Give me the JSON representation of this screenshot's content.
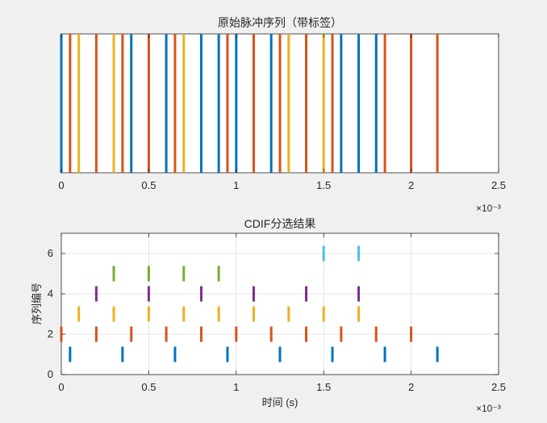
{
  "chart_data": [
    {
      "type": "pulse-train",
      "title": "原始脉冲序列（带标签）",
      "xlabel": "",
      "ylabel": "",
      "xlim": [
        0,
        0.0025
      ],
      "ylim": [
        0,
        1
      ],
      "x_ticks": [
        "0",
        "0.5",
        "1",
        "1.5",
        "2",
        "2.5"
      ],
      "x_exponent": "×10⁻³",
      "grid": false,
      "pulses": [
        {
          "x": 0.0,
          "color": "#0072BD"
        },
        {
          "x": 5e-05,
          "color": "#D95319"
        },
        {
          "x": 0.0001,
          "color": "#EDB120"
        },
        {
          "x": 0.0002,
          "color": "#D95319"
        },
        {
          "x": 0.0003,
          "color": "#EDB120"
        },
        {
          "x": 0.00035,
          "color": "#D95319"
        },
        {
          "x": 0.0004,
          "color": "#0072BD"
        },
        {
          "x": 0.0005,
          "color": "#D95319"
        },
        {
          "x": 0.0006,
          "color": "#0072BD"
        },
        {
          "x": 0.00065,
          "color": "#D95319"
        },
        {
          "x": 0.0007,
          "color": "#EDB120"
        },
        {
          "x": 0.0008,
          "color": "#0072BD"
        },
        {
          "x": 0.0009,
          "color": "#0072BD"
        },
        {
          "x": 0.00095,
          "color": "#D95319"
        },
        {
          "x": 0.001,
          "color": "#0072BD"
        },
        {
          "x": 0.0011,
          "color": "#D95319"
        },
        {
          "x": 0.0012,
          "color": "#0072BD"
        },
        {
          "x": 0.00125,
          "color": "#D95319"
        },
        {
          "x": 0.0013,
          "color": "#EDB120"
        },
        {
          "x": 0.0014,
          "color": "#D95319"
        },
        {
          "x": 0.0015,
          "color": "#EDB120"
        },
        {
          "x": 0.00155,
          "color": "#D95319"
        },
        {
          "x": 0.0016,
          "color": "#0072BD"
        },
        {
          "x": 0.0017,
          "color": "#0072BD"
        },
        {
          "x": 0.0018,
          "color": "#0072BD"
        },
        {
          "x": 0.00185,
          "color": "#D95319"
        },
        {
          "x": 0.002,
          "color": "#D95319"
        },
        {
          "x": 0.00215,
          "color": "#D95319"
        }
      ]
    },
    {
      "type": "scatter",
      "title": "CDIF分选结果",
      "xlabel": "时间 (s)",
      "ylabel": "序列编号",
      "xlim": [
        0,
        0.0025
      ],
      "ylim": [
        0,
        7
      ],
      "x_ticks": [
        "0",
        "0.5",
        "1",
        "1.5",
        "2",
        "2.5"
      ],
      "x_exponent": "×10⁻³",
      "y_ticks": [
        "0",
        "2",
        "4",
        "6"
      ],
      "grid": true,
      "marker": "vertical-dash",
      "series": [
        {
          "y": 1,
          "color": "#0072BD",
          "x": [
            5e-05,
            0.00035,
            0.00065,
            0.00095,
            0.00125,
            0.00155,
            0.00185,
            0.00215
          ]
        },
        {
          "y": 2,
          "color": "#D95319",
          "x": [
            0.0,
            0.0002,
            0.0004,
            0.0006,
            0.0008,
            0.001,
            0.0012,
            0.0014,
            0.0016,
            0.0018,
            0.002
          ]
        },
        {
          "y": 3,
          "color": "#EDB120",
          "x": [
            0.0001,
            0.0003,
            0.0005,
            0.0007,
            0.0009,
            0.0011,
            0.0013,
            0.0015,
            0.0017
          ]
        },
        {
          "y": 4,
          "color": "#7E2F8E",
          "x": [
            0.0002,
            0.0005,
            0.0008,
            0.0011,
            0.0014,
            0.0017
          ]
        },
        {
          "y": 5,
          "color": "#77AC30",
          "x": [
            0.0003,
            0.0005,
            0.0007,
            0.0009
          ]
        },
        {
          "y": 6,
          "color": "#4DBEEE",
          "x": [
            0.0015,
            0.0017
          ]
        }
      ]
    }
  ]
}
